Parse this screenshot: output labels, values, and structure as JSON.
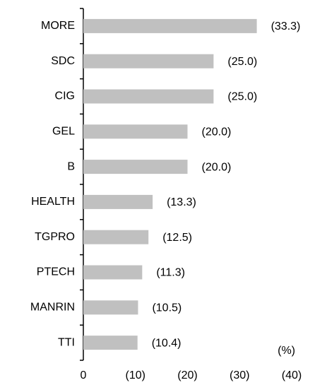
{
  "chart_data": {
    "type": "bar",
    "orientation": "horizontal",
    "categories": [
      "MORE",
      "SDC",
      "CIG",
      "GEL",
      "B",
      "HEALTH",
      "TGPRO",
      "PTECH",
      "MANRIN",
      "TTI"
    ],
    "values": [
      -33.3,
      -25.0,
      -25.0,
      -20.0,
      -20.0,
      -13.3,
      -12.5,
      -11.3,
      -10.5,
      -10.4
    ],
    "value_labels": [
      "(33.3)",
      "(25.0)",
      "(25.0)",
      "(20.0)",
      "(20.0)",
      "(13.3)",
      "(12.5)",
      "(11.3)",
      "(10.5)",
      "(10.4)"
    ],
    "color": "#c0c0c0",
    "xlim": [
      0,
      -40
    ],
    "xticks": [
      0,
      {
        "value": -10,
        "label": "(10)"
      },
      {
        "value": -20,
        "label": "(20)"
      },
      {
        "value": -30,
        "label": "(30)"
      },
      {
        "value": -40,
        "label": "(40)"
      }
    ],
    "unit_label": "(%)"
  }
}
